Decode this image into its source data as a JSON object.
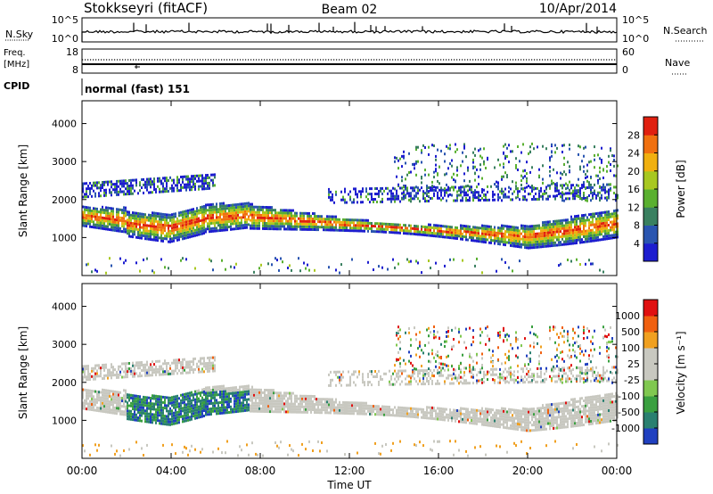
{
  "header": {
    "station": "Stokkseyri (fitACF)",
    "beam": "Beam 02",
    "date": "10/Apr/2014"
  },
  "strip": {
    "nsky_label": "N.Sky",
    "nsky_ticks": [
      "10^5",
      "10^0"
    ],
    "nsearch_label": "N.Search",
    "nsearch_ticks": [
      "10^5",
      "10^0"
    ],
    "freq_label_1": "Freq.",
    "freq_label_2": "[MHz]",
    "freq_ticks": [
      "18",
      "8"
    ],
    "nave_label": "Nave",
    "nave_ticks": [
      "60",
      "0"
    ],
    "cpid_label": "CPID",
    "cpid_value": "normal (fast) 151"
  },
  "chart_data": [
    {
      "type": "heatmap",
      "panel": "power",
      "ylabel": "Slant Range [km]",
      "yticks": [
        "1000",
        "2000",
        "3000",
        "4000"
      ],
      "ylim": [
        0,
        4600
      ],
      "colorbar": {
        "label": "Power [dB]",
        "ticks": [
          "4",
          "8",
          "12",
          "16",
          "20",
          "24",
          "28"
        ],
        "colors": [
          "#1d1dcf",
          "#2a55b0",
          "#3a8060",
          "#5ab030",
          "#a8c820",
          "#f0b010",
          "#f07010",
          "#e02010"
        ]
      },
      "features": [
        {
          "label": "main band",
          "x_hours": [
            0,
            24
          ],
          "range_km": [
            800,
            1800
          ]
        },
        {
          "label": "upper scatter",
          "x_hours": [
            14,
            24
          ],
          "range_km": [
            2000,
            3500
          ]
        }
      ]
    },
    {
      "type": "heatmap",
      "panel": "velocity",
      "ylabel": "Slant Range [km]",
      "yticks": [
        "1000",
        "2000",
        "3000",
        "4000"
      ],
      "ylim": [
        0,
        4600
      ],
      "colorbar": {
        "label": "Velocity [m s⁻¹]",
        "ticks": [
          "1000",
          "500",
          "100",
          "25",
          "-25",
          "-100",
          "-500",
          "-1000"
        ],
        "colors": [
          "#2040c0",
          "#2a8070",
          "#3aa040",
          "#80c850",
          "#c8c8c0",
          "#c8c8c0",
          "#f0a020",
          "#f06010",
          "#e01010"
        ]
      },
      "xaxis": {
        "label": "Time UT",
        "ticks": [
          "00:00",
          "04:00",
          "08:00",
          "12:00",
          "16:00",
          "20:00",
          "00:00"
        ]
      }
    }
  ],
  "colors": {
    "frame": "#000000",
    "ground": "#c8c8c0"
  }
}
